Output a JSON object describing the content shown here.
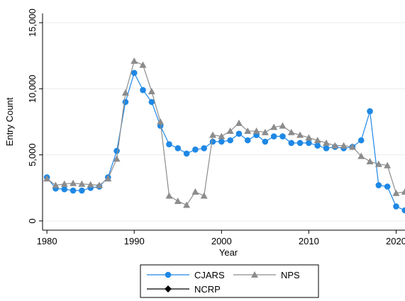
{
  "chart_data": {
    "type": "line",
    "xlabel": "Year",
    "ylabel": "Entry Count",
    "x": [
      1980,
      1981,
      1982,
      1983,
      1984,
      1985,
      1986,
      1987,
      1988,
      1989,
      1990,
      1991,
      1992,
      1993,
      1994,
      1995,
      1996,
      1997,
      1998,
      1999,
      2000,
      2001,
      2002,
      2003,
      2004,
      2005,
      2006,
      2007,
      2008,
      2009,
      2010,
      2011,
      2012,
      2013,
      2014,
      2015,
      2016,
      2017,
      2018,
      2019,
      2020,
      2021
    ],
    "series": [
      {
        "name": "CJARS",
        "color": "#1e88e5",
        "marker": "circle",
        "values": [
          3300,
          2450,
          2400,
          2300,
          2300,
          2500,
          2600,
          3300,
          5300,
          9000,
          11200,
          9900,
          9000,
          7200,
          5800,
          5500,
          5100,
          5400,
          5500,
          6000,
          6000,
          6100,
          6600,
          6100,
          6500,
          6000,
          6400,
          6400,
          5900,
          5900,
          5900,
          5700,
          5500,
          5600,
          5500,
          5600,
          6100,
          8300,
          2700,
          2600,
          1100,
          800
        ]
      },
      {
        "name": "NPS",
        "color": "#8c8c8c",
        "marker": "triangle",
        "values": [
          3200,
          2700,
          2800,
          2850,
          2800,
          2750,
          2700,
          3200,
          4700,
          9700,
          12100,
          11800,
          9800,
          7500,
          1900,
          1500,
          1200,
          2200,
          1900,
          6500,
          6400,
          6800,
          7400,
          6800,
          6800,
          6700,
          7100,
          7200,
          6700,
          6500,
          6300,
          6100,
          5900,
          5700,
          5700,
          5600,
          4900,
          4500,
          4300,
          4200,
          2100,
          2200
        ]
      },
      {
        "name": "NCRP",
        "color": "#000000",
        "marker": "diamond",
        "values": [
          null,
          null,
          null,
          null,
          null,
          null,
          null,
          null,
          null,
          null,
          null,
          null,
          null,
          null,
          null,
          null,
          null,
          null,
          null,
          null,
          null,
          null,
          null,
          null,
          null,
          null,
          null,
          null,
          null,
          null,
          null,
          null,
          null,
          null,
          null,
          null,
          null,
          null,
          null,
          null,
          null,
          null
        ]
      }
    ],
    "xlim": [
      1979.5,
      2021.1
    ],
    "xticks": [
      1980,
      1990,
      2000,
      2010,
      2020
    ],
    "ylim": [
      -700,
      15700
    ],
    "yticks": [
      0,
      {
        "value": 5000,
        "label": "5,000"
      },
      {
        "value": 10000,
        "label": "10,000"
      },
      {
        "value": 15000,
        "label": "15,000"
      }
    ],
    "grid": true,
    "legend": "bottom"
  }
}
